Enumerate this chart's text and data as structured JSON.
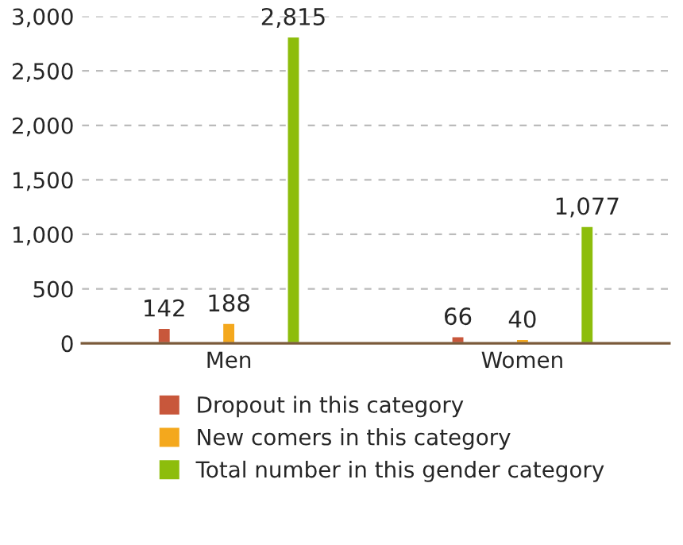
{
  "chart_data": {
    "type": "bar",
    "categories": [
      "Men",
      "Women"
    ],
    "series": [
      {
        "name": "Dropout in this category",
        "color": "#c8573b",
        "values": [
          142,
          66
        ],
        "value_labels": [
          "142",
          "66"
        ]
      },
      {
        "name": "New comers in this category",
        "color": "#f4a81d",
        "values": [
          188,
          40
        ],
        "value_labels": [
          "188",
          "40"
        ]
      },
      {
        "name": "Total number in this gender category",
        "color": "#8dbd0c",
        "values": [
          2815,
          1077
        ],
        "value_labels": [
          "2,815",
          "1,077"
        ]
      }
    ],
    "ylim": [
      0,
      3000
    ],
    "yticks": [
      0,
      {
        "value": 500,
        "label": "500"
      },
      {
        "value": 1000,
        "label": "1,000"
      },
      {
        "value": 1500,
        "label": "1,500"
      },
      {
        "value": 2000,
        "label": "2,000"
      },
      {
        "value": 2500,
        "label": "2,500"
      },
      {
        "value": 3000,
        "label": "3,000"
      }
    ],
    "grid": "y",
    "legend": "bottom"
  }
}
